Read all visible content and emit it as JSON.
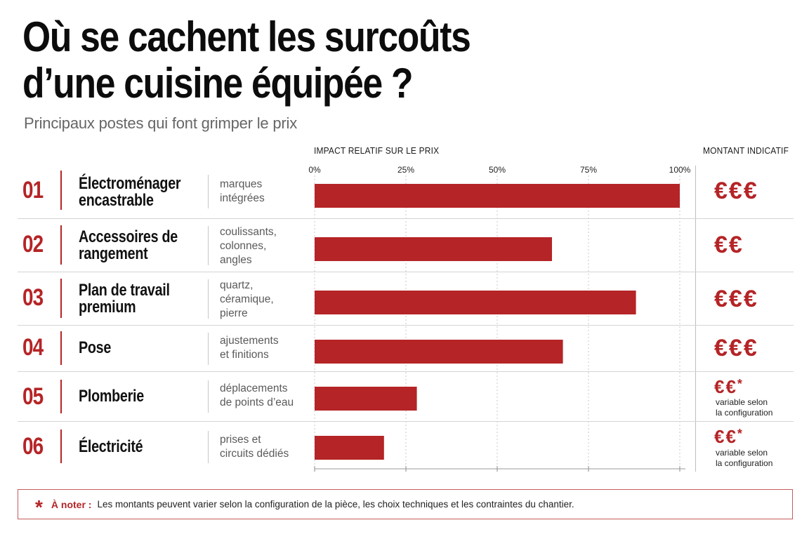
{
  "header": {
    "title_line1": "Où se cachent les surcoûts",
    "title_line2": "d’une cuisine équipée ?",
    "subtitle": "Principaux postes qui font grimper le prix"
  },
  "columns": {
    "impact": "IMPACT RELATIF SUR LE PRIX",
    "amount": "MONTANT INDICATIF"
  },
  "rows": [
    {
      "num": "01",
      "label_l1": "Électroménager",
      "label_l2": "encastrable",
      "desc_l1": "marques",
      "desc_l2": "intégrées",
      "desc_l3": "",
      "euros": "€€€",
      "star": "",
      "note_l1": "",
      "note_l2": ""
    },
    {
      "num": "02",
      "label_l1": "Accessoires de",
      "label_l2": "rangement",
      "desc_l1": "coulissants,",
      "desc_l2": "colonnes,",
      "desc_l3": "angles",
      "euros": "€€",
      "star": "",
      "note_l1": "",
      "note_l2": ""
    },
    {
      "num": "03",
      "label_l1": "Plan de travail",
      "label_l2": "premium",
      "desc_l1": "quartz,",
      "desc_l2": "céramique,",
      "desc_l3": "pierre",
      "euros": "€€€",
      "star": "",
      "note_l1": "",
      "note_l2": ""
    },
    {
      "num": "04",
      "label_l1": "Pose",
      "label_l2": "",
      "desc_l1": "ajustements",
      "desc_l2": "et finitions",
      "desc_l3": "",
      "euros": "€€€",
      "star": "",
      "note_l1": "",
      "note_l2": ""
    },
    {
      "num": "05",
      "label_l1": "Plomberie",
      "label_l2": "",
      "desc_l1": "déplacements",
      "desc_l2": "de points d’eau",
      "desc_l3": "",
      "euros": "€€",
      "star": "*",
      "note_l1": "variable selon",
      "note_l2": "la configuration"
    },
    {
      "num": "06",
      "label_l1": "Électricité",
      "label_l2": "",
      "desc_l1": "prises et",
      "desc_l2": "circuits dédiés",
      "desc_l3": "",
      "euros": "€€",
      "star": "*",
      "note_l1": "variable selon",
      "note_l2": "la configuration"
    }
  ],
  "chart_data": {
    "type": "bar",
    "orientation": "horizontal",
    "title": "IMPACT RELATIF SUR LE PRIX",
    "categories": [
      "Électroménager encastrable",
      "Accessoires de rangement",
      "Plan de travail premium",
      "Pose",
      "Plomberie",
      "Électricité"
    ],
    "values": [
      100,
      65,
      88,
      68,
      28,
      19
    ],
    "xlim": [
      0,
      100
    ],
    "ticks": [
      {
        "value": 0,
        "label": "0%"
      },
      {
        "value": 25,
        "label": "25%"
      },
      {
        "value": 50,
        "label": "50%"
      },
      {
        "value": 75,
        "label": "75%"
      },
      {
        "value": 100,
        "label": "100%"
      }
    ],
    "grid": true,
    "bar_color": "#b52426"
  },
  "footnote": {
    "star": "*",
    "label": "À noter :",
    "text": "Les montants peuvent varier selon la configuration de la pièce, les choix techniques et les contraintes du chantier."
  }
}
